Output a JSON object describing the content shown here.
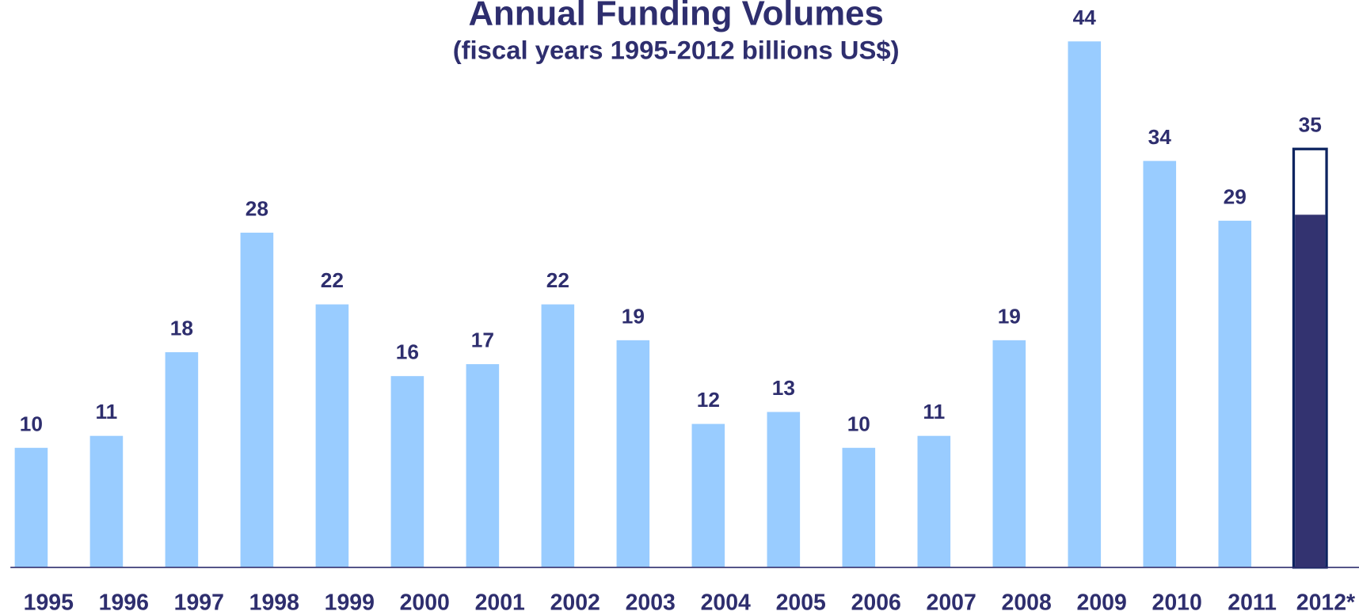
{
  "chart_data": {
    "type": "bar",
    "title": "Annual Funding Volumes",
    "subtitle": "(fiscal years 1995-2012 billions US$)",
    "categories": [
      "1995",
      "1996",
      "1997",
      "1998",
      "1999",
      "2000",
      "2001",
      "2002",
      "2003",
      "2004",
      "2005",
      "2006",
      "2007",
      "2008",
      "2009",
      "2010",
      "2011",
      "2012*"
    ],
    "values": [
      10,
      11,
      18,
      28,
      22,
      16,
      17,
      22,
      19,
      12,
      13,
      10,
      11,
      19,
      44,
      34,
      29,
      35
    ],
    "color": "#99ccff",
    "ylim": [
      0,
      45
    ],
    "highlight": {
      "index": 17,
      "fill_value": 29.5,
      "fill_color": "#333370",
      "outline_color": "#0d2460"
    }
  }
}
